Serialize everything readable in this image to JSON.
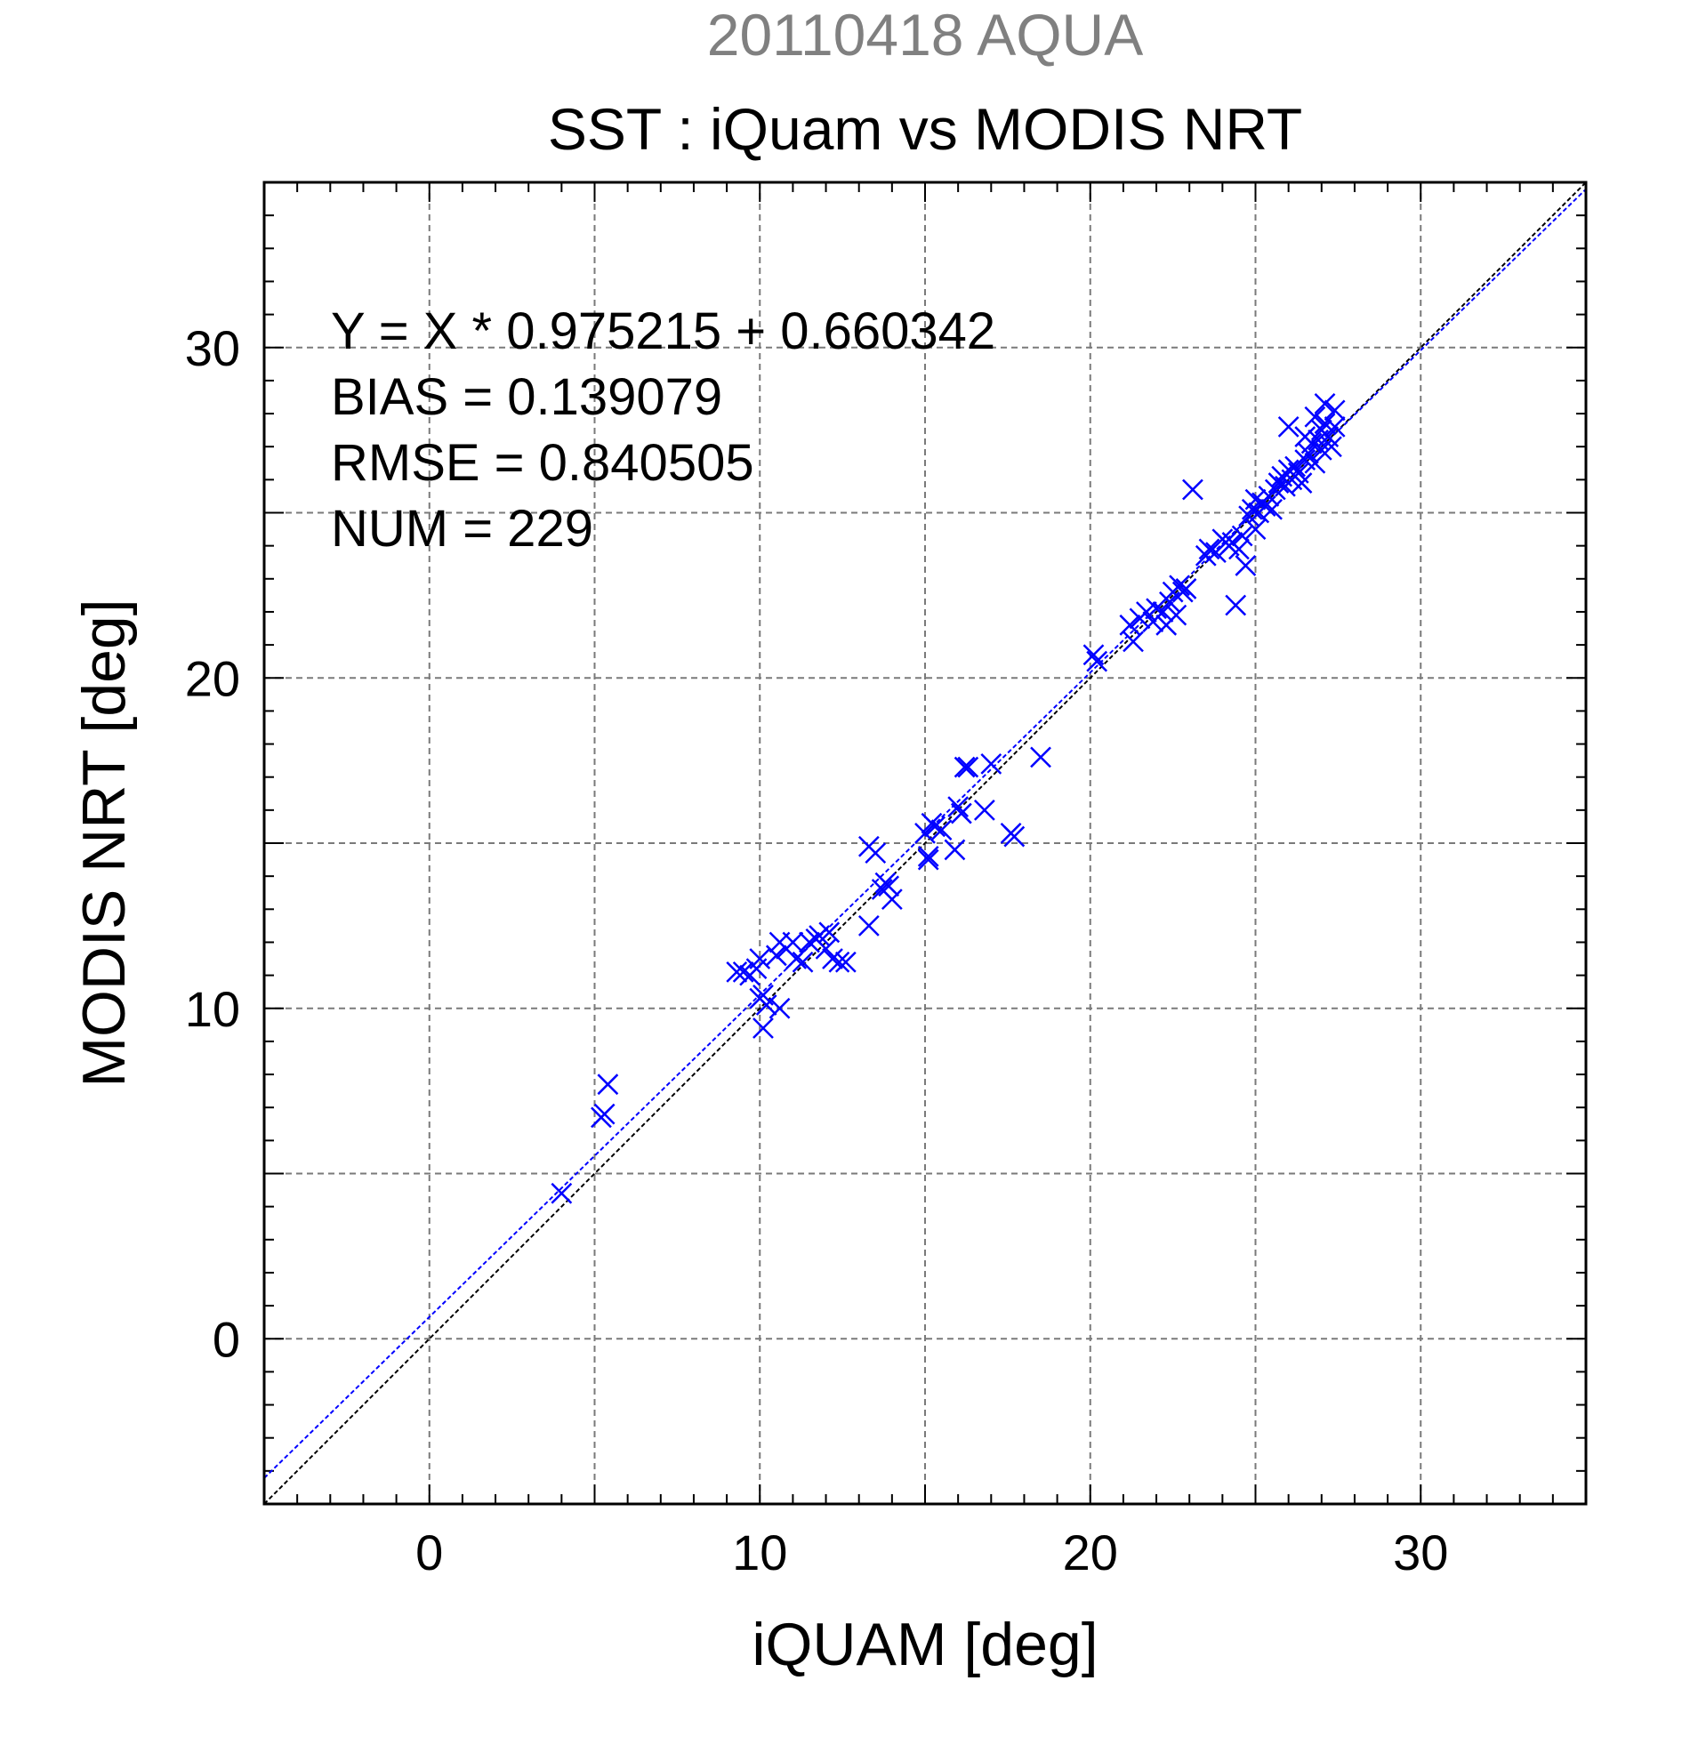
{
  "header": {
    "date_title": "20110418 AQUA",
    "title": "SST : iQuam vs MODIS NRT"
  },
  "stats": {
    "regression": "Y = X * 0.975215 + 0.660342",
    "bias": "BIAS = 0.139079",
    "rmse": "RMSE = 0.840505",
    "num": "NUM = 229"
  },
  "colors": {
    "points": "#0000ff",
    "regression_line": "#0000ff",
    "identity_line": "#000000",
    "date_title": "#808080",
    "grid": "#7a7a7a"
  },
  "chart_data": {
    "type": "scatter",
    "title": "SST : iQuam vs MODIS NRT",
    "subtitle": "20110418 AQUA",
    "xlabel": "iQUAM [deg]",
    "ylabel": "MODIS NRT [deg]",
    "xlim": [
      -5,
      35
    ],
    "ylim": [
      -5,
      35
    ],
    "xticks": [
      0,
      10,
      20,
      30
    ],
    "yticks": [
      0,
      10,
      20,
      30
    ],
    "grid": true,
    "marker": "x",
    "regression": {
      "slope": 0.975215,
      "intercept": 0.660342
    },
    "identity_line": true,
    "series": [
      {
        "values": [
          [
            4.0,
            4.4
          ],
          [
            5.2,
            6.7
          ],
          [
            5.3,
            6.8
          ],
          [
            5.4,
            7.7
          ],
          [
            9.3,
            11.1
          ],
          [
            9.5,
            11.1
          ],
          [
            9.7,
            11.0
          ],
          [
            9.9,
            11.2
          ],
          [
            10.0,
            11.5
          ],
          [
            10.0,
            10.3
          ],
          [
            10.1,
            10.4
          ],
          [
            10.2,
            10.1
          ],
          [
            10.1,
            9.4
          ],
          [
            10.6,
            10.0
          ],
          [
            10.5,
            11.6
          ],
          [
            10.6,
            12.0
          ],
          [
            10.8,
            11.8
          ],
          [
            11.0,
            12.0
          ],
          [
            11.1,
            11.5
          ],
          [
            11.3,
            11.4
          ],
          [
            11.5,
            12.0
          ],
          [
            11.7,
            12.1
          ],
          [
            11.8,
            12.2
          ],
          [
            12.0,
            11.8
          ],
          [
            12.1,
            12.3
          ],
          [
            12.2,
            11.5
          ],
          [
            12.4,
            11.4
          ],
          [
            12.6,
            11.4
          ],
          [
            13.3,
            12.5
          ],
          [
            13.3,
            14.9
          ],
          [
            13.5,
            14.7
          ],
          [
            13.7,
            13.6
          ],
          [
            13.8,
            13.8
          ],
          [
            13.9,
            13.7
          ],
          [
            14.0,
            13.3
          ],
          [
            15.0,
            15.3
          ],
          [
            15.1,
            14.6
          ],
          [
            15.1,
            14.5
          ],
          [
            15.2,
            15.6
          ],
          [
            15.3,
            15.5
          ],
          [
            15.5,
            15.4
          ],
          [
            15.9,
            14.8
          ],
          [
            16.0,
            16.1
          ],
          [
            16.1,
            15.9
          ],
          [
            16.2,
            17.3
          ],
          [
            16.3,
            17.3
          ],
          [
            16.8,
            16.0
          ],
          [
            17.0,
            17.4
          ],
          [
            17.6,
            15.3
          ],
          [
            17.7,
            15.2
          ],
          [
            18.5,
            17.6
          ],
          [
            20.1,
            20.7
          ],
          [
            20.2,
            20.5
          ],
          [
            21.2,
            21.6
          ],
          [
            21.3,
            21.1
          ],
          [
            21.5,
            21.8
          ],
          [
            21.7,
            22.0
          ],
          [
            21.9,
            21.7
          ],
          [
            22.0,
            22.1
          ],
          [
            22.2,
            22.0
          ],
          [
            22.3,
            21.6
          ],
          [
            22.4,
            22.3
          ],
          [
            22.5,
            22.6
          ],
          [
            22.6,
            21.9
          ],
          [
            22.7,
            22.8
          ],
          [
            22.8,
            22.6
          ],
          [
            22.9,
            22.7
          ],
          [
            23.1,
            25.7
          ],
          [
            23.5,
            23.7
          ],
          [
            23.6,
            23.9
          ],
          [
            23.8,
            23.8
          ],
          [
            24.0,
            24.2
          ],
          [
            24.1,
            24.1
          ],
          [
            24.2,
            24.0
          ],
          [
            24.3,
            24.1
          ],
          [
            24.4,
            22.2
          ],
          [
            24.5,
            23.9
          ],
          [
            24.6,
            24.3
          ],
          [
            24.7,
            23.4
          ],
          [
            24.8,
            24.9
          ],
          [
            24.9,
            25.1
          ],
          [
            25.0,
            24.5
          ],
          [
            25.0,
            25.4
          ],
          [
            25.1,
            25.0
          ],
          [
            25.2,
            25.3
          ],
          [
            25.3,
            25.2
          ],
          [
            25.4,
            25.5
          ],
          [
            25.5,
            25.1
          ],
          [
            25.6,
            25.7
          ],
          [
            25.7,
            25.9
          ],
          [
            25.8,
            26.1
          ],
          [
            25.9,
            25.8
          ],
          [
            26.0,
            26.3
          ],
          [
            26.1,
            26.0
          ],
          [
            26.0,
            27.6
          ],
          [
            26.2,
            26.4
          ],
          [
            26.3,
            26.2
          ],
          [
            26.4,
            25.9
          ],
          [
            26.5,
            26.6
          ],
          [
            26.5,
            27.3
          ],
          [
            26.6,
            26.8
          ],
          [
            26.7,
            27.1
          ],
          [
            26.8,
            26.5
          ],
          [
            26.8,
            27.9
          ],
          [
            26.9,
            27.2
          ],
          [
            27.0,
            27.5
          ],
          [
            27.0,
            26.9
          ],
          [
            27.1,
            27.7
          ],
          [
            27.1,
            28.3
          ],
          [
            27.2,
            27.3
          ],
          [
            27.3,
            27.0
          ],
          [
            27.4,
            27.6
          ],
          [
            27.4,
            28.1
          ]
        ]
      }
    ]
  }
}
